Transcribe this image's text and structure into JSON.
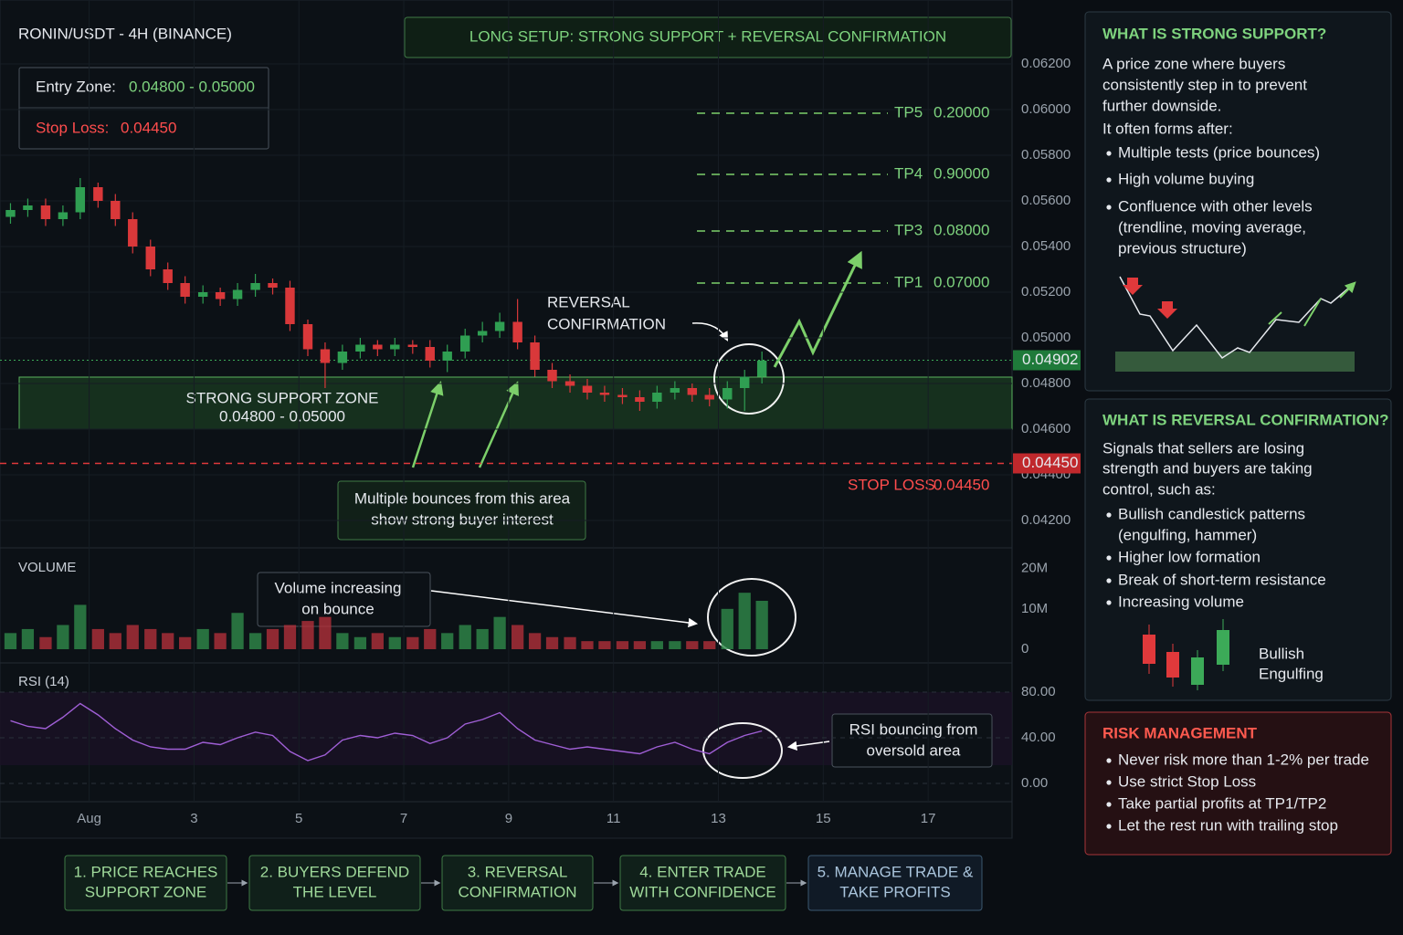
{
  "header": {
    "pair": "RONIN/USDT - 4H (BINANCE)",
    "setup_title": "LONG SETUP: STRONG SUPPORT + REVERSAL CONFIRMATION"
  },
  "trade": {
    "entry_label": "Entry Zone:",
    "entry_value": "0.04800 - 0.05000",
    "stop_label": "Stop Loss:",
    "stop_value": "0.04450"
  },
  "targets": [
    {
      "name": "TP5",
      "price": "0.20000"
    },
    {
      "name": "TP4",
      "price": "0.90000"
    },
    {
      "name": "TP3",
      "price": "0.08000"
    },
    {
      "name": "TP1",
      "price": "0.07000"
    }
  ],
  "annotations": {
    "support_zone": [
      "STRONG SUPPORT ZONE",
      "0.04800 - 0.05000"
    ],
    "reversal": [
      "REVERSAL",
      "CONFIRMATION"
    ],
    "bounces": [
      "Multiple bounces from this area",
      "show strong buyer interest"
    ],
    "volume_note": [
      "Volume increasing",
      "on bounce"
    ],
    "rsi_note": [
      "RSI bouncing from",
      "oversold area"
    ],
    "stop_loss": "STOP LOSS",
    "stop_loss_price": "0.04450"
  },
  "chart_data": [
    {
      "type": "candlestick",
      "up_color": "#2f9e52",
      "down_color": "#d9383a",
      "grid": true,
      "x": [
        -0.5,
        -0.17,
        0.17,
        0.5,
        0.83,
        1.17,
        1.5,
        1.83,
        2.17,
        2.5,
        2.83,
        3.17,
        3.5,
        3.83,
        4.17,
        4.5,
        4.83,
        5.17,
        5.5,
        5.83,
        6.17,
        6.5,
        6.83,
        7.17,
        7.5,
        7.83,
        8.17,
        8.5,
        8.83,
        9.17,
        9.5,
        9.83,
        10.17,
        10.5,
        10.83,
        11.17,
        11.5,
        11.83,
        12.17,
        12.5,
        12.83,
        13.17,
        13.5,
        13.83
      ],
      "open": [
        0.0553,
        0.0556,
        0.0558,
        0.0552,
        0.0555,
        0.0566,
        0.056,
        0.0552,
        0.054,
        0.053,
        0.0524,
        0.0518,
        0.052,
        0.0517,
        0.0521,
        0.0524,
        0.0522,
        0.0506,
        0.0495,
        0.0489,
        0.0494,
        0.0497,
        0.0495,
        0.0497,
        0.0496,
        0.049,
        0.0494,
        0.0501,
        0.0503,
        0.0507,
        0.0498,
        0.0486,
        0.0481,
        0.0479,
        0.0476,
        0.0475,
        0.0474,
        0.0472,
        0.0476,
        0.0478,
        0.0475,
        0.0473,
        0.0478,
        0.0483
      ],
      "high": [
        0.0559,
        0.0561,
        0.0561,
        0.0558,
        0.057,
        0.0568,
        0.0563,
        0.0555,
        0.0543,
        0.0533,
        0.0527,
        0.0523,
        0.0522,
        0.0524,
        0.0528,
        0.0526,
        0.0525,
        0.0508,
        0.0498,
        0.0497,
        0.05,
        0.0499,
        0.05,
        0.0499,
        0.0499,
        0.0497,
        0.0504,
        0.0507,
        0.0511,
        0.0517,
        0.0501,
        0.0489,
        0.0484,
        0.0482,
        0.0479,
        0.0478,
        0.0477,
        0.0479,
        0.0481,
        0.048,
        0.0478,
        0.0481,
        0.0486,
        0.0494
      ],
      "low": [
        0.055,
        0.0553,
        0.0549,
        0.0549,
        0.0552,
        0.0557,
        0.0549,
        0.0537,
        0.0527,
        0.0521,
        0.0515,
        0.0515,
        0.0514,
        0.0514,
        0.0518,
        0.0519,
        0.0503,
        0.0492,
        0.0478,
        0.0486,
        0.0491,
        0.0492,
        0.0492,
        0.0493,
        0.0487,
        0.0485,
        0.0491,
        0.0498,
        0.05,
        0.0495,
        0.0483,
        0.0478,
        0.0476,
        0.0473,
        0.0472,
        0.0471,
        0.0468,
        0.0469,
        0.0473,
        0.0472,
        0.047,
        0.0469,
        0.0468,
        0.048
      ],
      "close": [
        0.0556,
        0.0558,
        0.0552,
        0.0555,
        0.0566,
        0.056,
        0.0552,
        0.054,
        0.053,
        0.0524,
        0.0518,
        0.052,
        0.0517,
        0.0521,
        0.0524,
        0.0522,
        0.0506,
        0.0495,
        0.0489,
        0.0494,
        0.0497,
        0.0495,
        0.0497,
        0.0496,
        0.049,
        0.0494,
        0.0501,
        0.0503,
        0.0507,
        0.0498,
        0.0486,
        0.0481,
        0.0479,
        0.0476,
        0.0475,
        0.0474,
        0.0472,
        0.0476,
        0.0478,
        0.0475,
        0.0473,
        0.0478,
        0.0483,
        0.049
      ],
      "xlim": [
        -0.7,
        18.6
      ],
      "ylim": [
        0.0408,
        0.0648
      ],
      "xticks": [
        {
          "value": 1,
          "label": "Aug"
        },
        3,
        5,
        7,
        9,
        11,
        13,
        15,
        17
      ],
      "yticks": [
        {
          "value": 0.062,
          "label": "0.06200"
        },
        {
          "value": 0.06,
          "label": "0.06000"
        },
        {
          "value": 0.058,
          "label": "0.05800"
        },
        {
          "value": 0.056,
          "label": "0.05600"
        },
        {
          "value": 0.054,
          "label": "0.05400"
        },
        {
          "value": 0.052,
          "label": "0.05200"
        },
        {
          "value": 0.05,
          "label": "0.05000"
        },
        {
          "value": 0.048,
          "label": "0.04800"
        },
        {
          "value": 0.046,
          "label": "0.04600"
        },
        {
          "value": 0.044,
          "label": "0.04400"
        },
        {
          "value": 0.042,
          "label": "0.04200"
        }
      ],
      "current_price": 0.04902,
      "stop_line": {
        "value": 0.0445,
        "label": "0.04450"
      }
    },
    {
      "type": "bar",
      "title": "VOLUME",
      "x": [
        -0.5,
        -0.17,
        0.17,
        0.5,
        0.83,
        1.17,
        1.5,
        1.83,
        2.17,
        2.5,
        2.83,
        3.17,
        3.5,
        3.83,
        4.17,
        4.5,
        4.83,
        5.17,
        5.5,
        5.83,
        6.17,
        6.5,
        6.83,
        7.17,
        7.5,
        7.83,
        8.17,
        8.5,
        8.83,
        9.17,
        9.5,
        9.83,
        10.17,
        10.5,
        10.83,
        11.17,
        11.5,
        11.83,
        12.17,
        12.5,
        12.83,
        13.17,
        13.5,
        13.83
      ],
      "values": [
        4000000,
        5000000,
        3000000,
        6000000,
        11000000,
        5000000,
        4000000,
        6000000,
        5000000,
        4000000,
        3000000,
        5000000,
        4000000,
        9000000,
        4000000,
        5000000,
        6000000,
        7000000,
        8000000,
        4000000,
        3000000,
        4000000,
        3000000,
        3000000,
        5000000,
        4000000,
        6000000,
        5000000,
        8000000,
        6000000,
        4000000,
        3000000,
        3000000,
        2000000,
        2000000,
        2000000,
        2000000,
        2000000,
        2000000,
        2000000,
        2000000,
        10000000,
        14000000,
        12000000
      ],
      "xlim": [
        -0.7,
        18.6
      ],
      "ylim": [
        0,
        24000000
      ],
      "yticks": [
        {
          "value": 20000000,
          "label": "20M"
        },
        {
          "value": 10000000,
          "label": "10M"
        },
        0
      ]
    },
    {
      "type": "line",
      "title": "RSI (14)",
      "color": "#a05fd6",
      "x": [
        -0.5,
        -0.17,
        0.17,
        0.5,
        0.83,
        1.17,
        1.5,
        1.83,
        2.17,
        2.5,
        2.83,
        3.17,
        3.5,
        3.83,
        4.17,
        4.5,
        4.83,
        5.17,
        5.5,
        5.83,
        6.17,
        6.5,
        6.83,
        7.17,
        7.5,
        7.83,
        8.17,
        8.5,
        8.83,
        9.17,
        9.5,
        9.83,
        10.17,
        10.5,
        10.83,
        11.17,
        11.5,
        11.83,
        12.17,
        12.5,
        12.83,
        13.17,
        13.5,
        13.83
      ],
      "values": [
        55,
        50,
        48,
        58,
        70,
        60,
        48,
        38,
        32,
        30,
        30,
        36,
        34,
        40,
        45,
        42,
        28,
        20,
        25,
        38,
        42,
        40,
        44,
        42,
        35,
        40,
        52,
        56,
        62,
        48,
        38,
        34,
        30,
        32,
        30,
        28,
        26,
        32,
        36,
        30,
        26,
        36,
        42,
        46
      ],
      "xlim": [
        -0.7,
        18.6
      ],
      "ylim": [
        -16,
        94
      ],
      "yticks": [
        {
          "value": 80,
          "label": "80.00"
        },
        {
          "value": 40,
          "label": "40.00"
        },
        {
          "value": 0,
          "label": "0.00"
        }
      ]
    }
  ],
  "panels": {
    "support": {
      "title": "WHAT IS STRONG SUPPORT?",
      "body": [
        "A price zone where buyers",
        "consistently step in to prevent",
        "further downside.",
        "It often forms after:"
      ],
      "bullets": [
        [
          "Multiple tests (price bounces)"
        ],
        [
          "High volume buying"
        ],
        [
          "Confluence with other levels",
          "(trendline, moving average,",
          "previous structure)"
        ]
      ]
    },
    "reversal": {
      "title": "WHAT IS REVERSAL CONFIRMATION?",
      "body": [
        "Signals that sellers are losing",
        "strength and buyers are taking",
        "control, such as:"
      ],
      "bullets": [
        [
          "Bullish candlestick patterns",
          "(engulfing, hammer)"
        ],
        [
          "Higher low formation"
        ],
        [
          "Break of short-term resistance"
        ],
        [
          "Increasing volume"
        ]
      ],
      "pattern_label": [
        "Bullish",
        "Engulfing"
      ]
    },
    "risk": {
      "title": "RISK MANAGEMENT",
      "bullets": [
        [
          "Never risk more than 1-2% per trade"
        ],
        [
          "Use strict Stop Loss"
        ],
        [
          "Take partial profits at TP1/TP2"
        ],
        [
          "Let the rest run with trailing stop"
        ]
      ]
    }
  },
  "steps": [
    [
      "1.  PRICE REACHES",
      "SUPPORT ZONE"
    ],
    [
      "2. BUYERS DEFEND",
      "THE LEVEL"
    ],
    [
      "3. REVERSAL",
      "CONFIRMATION"
    ],
    [
      "4. ENTER TRADE",
      "WITH CONFIDENCE"
    ],
    [
      "5. MANAGE TRADE &",
      "TAKE PROFITS"
    ]
  ]
}
